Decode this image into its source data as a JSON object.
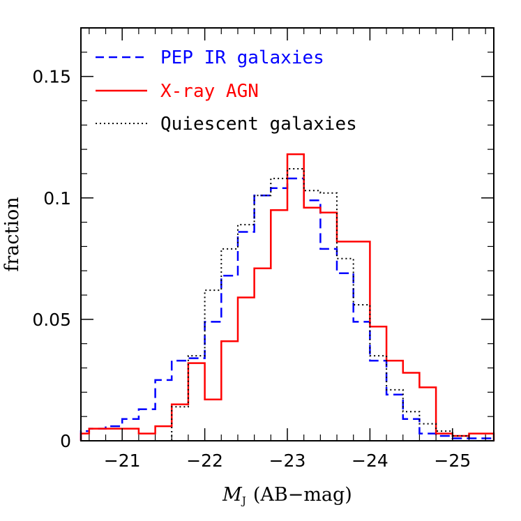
{
  "chart_data": {
    "type": "step",
    "title": "",
    "xlabel_symbol": "M",
    "xlabel_subscript": "J",
    "xlabel_rest": "(AB−mag)",
    "ylabel": "fraction",
    "xlim": [
      -20.5,
      -25.5
    ],
    "ylim": [
      0,
      0.17
    ],
    "x_ticks": [
      -21,
      -22,
      -23,
      -24,
      -25
    ],
    "x_tick_labels": [
      "−21",
      "−22",
      "−23",
      "−24",
      "−25"
    ],
    "y_ticks": [
      0,
      0.05,
      0.1,
      0.15
    ],
    "y_tick_labels": [
      "0",
      "0.05",
      "0.1",
      "0.15"
    ],
    "grid": false,
    "legend_position": "top-left",
    "series": [
      {
        "name": "PEP IR galaxies",
        "color": "#0000ff",
        "style": "dashed",
        "bin_edges": [
          -20.5,
          -20.6,
          -20.8,
          -21.0,
          -21.2,
          -21.4,
          -21.6,
          -21.8,
          -22.0,
          -22.2,
          -22.4,
          -22.6,
          -22.8,
          -23.0,
          -23.2,
          -23.4,
          -23.6,
          -23.8,
          -24.0,
          -24.2,
          -24.4,
          -24.6,
          -24.8,
          -25.0,
          -25.2,
          -25.5
        ],
        "values": [
          0.004,
          0.005,
          0.006,
          0.009,
          0.013,
          0.025,
          0.033,
          0.034,
          0.049,
          0.068,
          0.086,
          0.101,
          0.104,
          0.108,
          0.099,
          0.079,
          0.069,
          0.049,
          0.033,
          0.019,
          0.009,
          0.003,
          0.002,
          0.001,
          0.001
        ]
      },
      {
        "name": "X-ray AGN",
        "color": "#ff0000",
        "style": "solid",
        "bin_edges": [
          -20.5,
          -20.6,
          -20.8,
          -21.0,
          -21.2,
          -21.4,
          -21.6,
          -21.8,
          -22.0,
          -22.2,
          -22.4,
          -22.6,
          -22.8,
          -23.0,
          -23.2,
          -23.4,
          -23.6,
          -23.8,
          -24.0,
          -24.2,
          -24.4,
          -24.6,
          -24.8,
          -25.0,
          -25.2,
          -25.5
        ],
        "values": [
          0.003,
          0.005,
          0.005,
          0.005,
          0.003,
          0.006,
          0.015,
          0.032,
          0.017,
          0.041,
          0.059,
          0.071,
          0.095,
          0.118,
          0.096,
          0.094,
          0.082,
          0.082,
          0.047,
          0.033,
          0.028,
          0.022,
          0.003,
          0.002,
          0.003
        ]
      },
      {
        "name": "Quiescent galaxies",
        "color": "#000000",
        "style": "dotted",
        "bin_edges": [
          -21.6,
          -21.8,
          -22.0,
          -22.2,
          -22.4,
          -22.6,
          -22.8,
          -23.0,
          -23.2,
          -23.4,
          -23.6,
          -23.8,
          -24.0,
          -24.2,
          -24.4,
          -24.6,
          -24.8,
          -25.0,
          -25.2
        ],
        "values": [
          0.014,
          0.035,
          0.062,
          0.079,
          0.089,
          0.101,
          0.108,
          0.112,
          0.103,
          0.102,
          0.075,
          0.056,
          0.035,
          0.021,
          0.012,
          0.007,
          0.004,
          0.002
        ]
      }
    ]
  }
}
